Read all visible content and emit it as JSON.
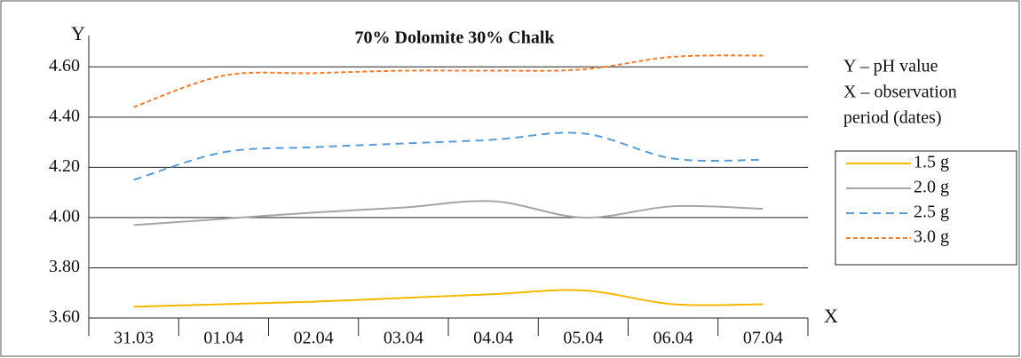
{
  "chart_data": {
    "type": "line",
    "title": "70% Dolomite 30% Chalk",
    "y_label": "Y",
    "x_label": "X",
    "annotations": [
      "Y – pH value",
      "X – observation",
      "period (dates)"
    ],
    "categories": [
      "31.03",
      "01.04",
      "02.04",
      "03.04",
      "04.04",
      "05.04",
      "06.04",
      "07.04"
    ],
    "series": [
      {
        "name": "1.5 g",
        "color": "#f5b800",
        "line_style": "solid",
        "values": [
          3.645,
          3.655,
          3.665,
          3.68,
          3.695,
          3.71,
          3.655,
          3.655
        ]
      },
      {
        "name": "2.0 g",
        "color": "#a5a5a5",
        "line_style": "solid",
        "values": [
          3.97,
          3.995,
          4.02,
          4.04,
          4.065,
          4.0,
          4.045,
          4.035
        ]
      },
      {
        "name": "2.5 g",
        "color": "#5b9bd5",
        "line_style": "dashed",
        "values": [
          4.15,
          4.26,
          4.28,
          4.295,
          4.31,
          4.335,
          4.235,
          4.23
        ]
      },
      {
        "name": "3.0 g",
        "color": "#ed7d31",
        "line_style": "short-dashed",
        "values": [
          4.44,
          4.565,
          4.575,
          4.585,
          4.585,
          4.59,
          4.64,
          4.645
        ]
      }
    ],
    "ylim": [
      3.6,
      4.7
    ],
    "yticks": [
      {
        "value": 3.6,
        "label": "3.60"
      },
      {
        "value": 3.8,
        "label": "3.80"
      },
      {
        "value": 4.0,
        "label": "4.00"
      },
      {
        "value": 4.2,
        "label": "4.20"
      },
      {
        "value": 4.4,
        "label": "4.40"
      },
      {
        "value": 4.6,
        "label": "4.60"
      }
    ],
    "grid": true,
    "legend": "right"
  }
}
